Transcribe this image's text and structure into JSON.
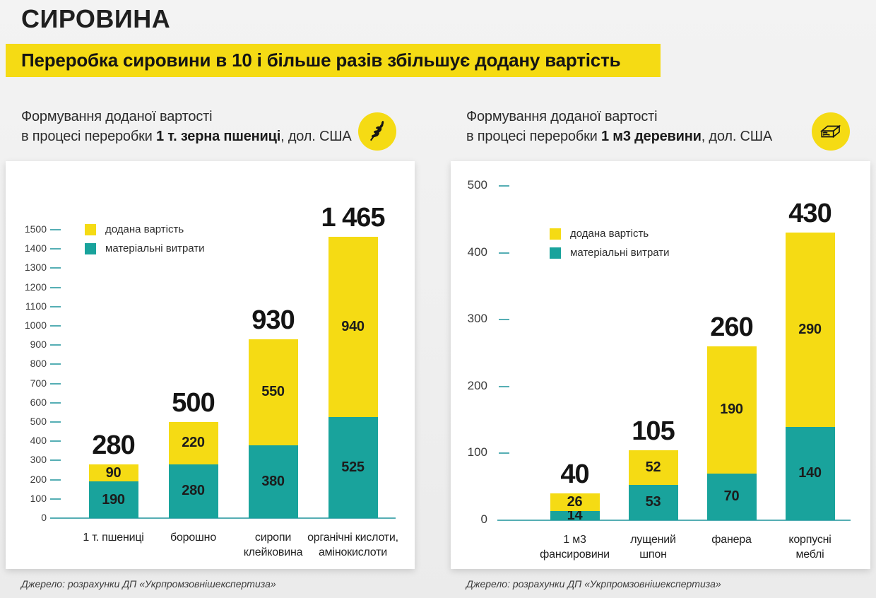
{
  "header": {
    "title": "СИРОВИНА",
    "banner": "Переробка сировини в 10 і більше разів збільшує додану вартість"
  },
  "colors": {
    "yellow": "#F5DB14",
    "teal": "#19A39C",
    "tick": "#55AEB4",
    "text_dark": "#1C1C1C",
    "card_bg": "#FFFFFF",
    "page_bg": "#EFEFEF"
  },
  "charts": [
    {
      "subtitle_line1": "Формування доданої вартості",
      "subtitle_prefix": "в процесі переробки ",
      "subtitle_bold": "1 т. зерна пшениці",
      "subtitle_suffix": ", дол. США",
      "icon": "wheat-icon",
      "source": "Джерело: розрахунки ДП «Укрпромзовнішекспертиза»"
    },
    {
      "subtitle_line1": "Формування доданої вартості",
      "subtitle_prefix": "в процесі переробки ",
      "subtitle_bold": "1 м3 деревини",
      "subtitle_suffix": ", дол. США",
      "icon": "lumber-icon",
      "source": "Джерело: розрахунки ДП «Укрпромзовнішекспертиза»"
    }
  ],
  "chart_data": [
    {
      "type": "bar",
      "stacked": true,
      "title": "Формування доданої вартості в процесі переробки 1 т. зерна пшениці, дол. США",
      "categories": [
        "1 т. пшениці",
        "борошно",
        "сиропи\nклейковина",
        "органічні кислоти,\nамінокислоти"
      ],
      "series": [
        {
          "name": "матеріальні витрати",
          "color": "#19A39C",
          "values": [
            190,
            280,
            380,
            525
          ]
        },
        {
          "name": "додана вартість",
          "color": "#F5DB14",
          "values": [
            90,
            220,
            550,
            940
          ]
        }
      ],
      "totals": [
        280,
        500,
        930,
        1465
      ],
      "total_labels": [
        "280",
        "500",
        "930",
        "1 465"
      ],
      "ylim": [
        0,
        1500
      ],
      "ytick_step": 100,
      "yticks": [
        0,
        100,
        200,
        300,
        400,
        500,
        600,
        700,
        800,
        900,
        1000,
        1100,
        1200,
        1300,
        1400,
        1500
      ],
      "grid": false,
      "legend_position": "top-left"
    },
    {
      "type": "bar",
      "stacked": true,
      "title": "Формування доданої вартості в процесі переробки 1 м3 деревини, дол. США",
      "categories": [
        "1 м3\nфансировини",
        "лущений\nшпон",
        "фанера",
        "корпусні\nмеблі"
      ],
      "series": [
        {
          "name": "матеріальні витрати",
          "color": "#19A39C",
          "values": [
            14,
            53,
            70,
            140
          ]
        },
        {
          "name": "додана вартість",
          "color": "#F5DB14",
          "values": [
            26,
            52,
            190,
            290
          ]
        }
      ],
      "totals": [
        40,
        105,
        260,
        430
      ],
      "total_labels": [
        "40",
        "105",
        "260",
        "430"
      ],
      "ylim": [
        0,
        500
      ],
      "ytick_step": 100,
      "yticks": [
        0,
        100,
        200,
        300,
        400,
        500
      ],
      "grid": false,
      "legend_position": "top-left"
    }
  ]
}
